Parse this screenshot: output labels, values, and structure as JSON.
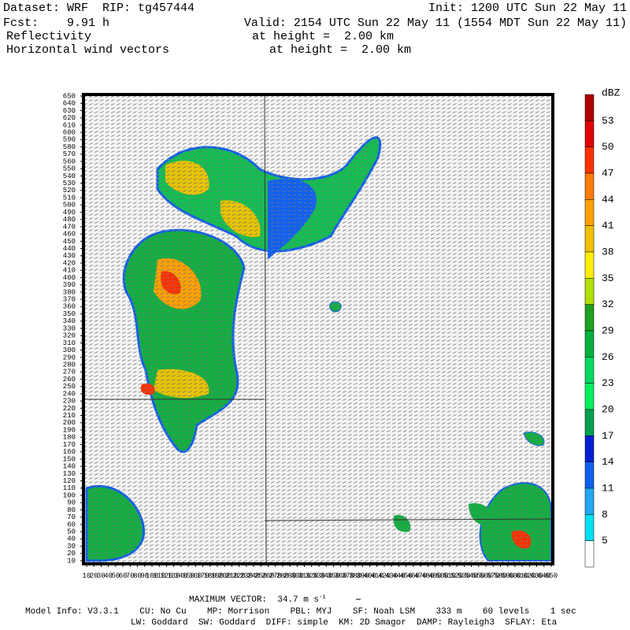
{
  "header": {
    "dataset": "Dataset: WRF  RIP: tg457444",
    "init": "Init: 1200 UTC Sun 22 May 11",
    "fcst": "Fcst:    9.91 h",
    "valid": "Valid: 2154 UTC Sun 22 May 11 (1554 MDT Sun 22 May 11)",
    "field1": "Reflectivity",
    "height1": "at height =  2.00 km",
    "field2": "Horizontal wind vectors",
    "height2": "at height =  2.00 km"
  },
  "plot": {
    "xlim": [
      10,
      650
    ],
    "ylim": [
      10,
      650
    ],
    "xticks": [
      10,
      20,
      30,
      40,
      50,
      60,
      70,
      80,
      90,
      100,
      110,
      120,
      130,
      140,
      150,
      160,
      170,
      180,
      190,
      200,
      210,
      220,
      230,
      240,
      250,
      260,
      270,
      280,
      290,
      300,
      310,
      320,
      330,
      340,
      350,
      360,
      370,
      380,
      390,
      400,
      410,
      420,
      430,
      440,
      450,
      460,
      470,
      480,
      490,
      500,
      510,
      520,
      530,
      540,
      550,
      560,
      570,
      580,
      590,
      600,
      610,
      620,
      630,
      640,
      650
    ],
    "yticks": [
      10,
      20,
      30,
      40,
      50,
      60,
      70,
      80,
      90,
      100,
      110,
      120,
      130,
      140,
      150,
      160,
      170,
      180,
      190,
      200,
      210,
      220,
      230,
      240,
      250,
      260,
      270,
      280,
      290,
      300,
      310,
      320,
      330,
      340,
      350,
      360,
      370,
      380,
      390,
      400,
      410,
      420,
      430,
      440,
      450,
      460,
      470,
      480,
      490,
      500,
      510,
      520,
      530,
      540,
      550,
      560,
      570,
      580,
      590,
      600,
      610,
      620,
      630,
      640,
      650
    ]
  },
  "colorbar": {
    "unit": "dBZ",
    "levels": [
      53,
      50,
      47,
      44,
      41,
      38,
      35,
      32,
      29,
      26,
      23,
      20,
      17,
      14,
      11,
      8,
      5
    ],
    "colors": [
      "#b00000",
      "#e00000",
      "#ff3000",
      "#ff7a00",
      "#ffa000",
      "#f0c000",
      "#ffee00",
      "#b0e000",
      "#20a020",
      "#00b040",
      "#00d860",
      "#00f060",
      "#00a050",
      "#0020d0",
      "#1060f0",
      "#20a8f0",
      "#00e0f0",
      "#ffffff"
    ]
  },
  "footer": {
    "max_vector": "MAXIMUM VECTOR:  34.7 m s",
    "max_vector_exp": "-1",
    "model_info": "Model Info: V3.3.1    CU: No Cu    MP: Morrison    PBL: MYJ    SF: Noah LSM    333 m    60 levels    1 sec",
    "physics": "LW: Goddard  SW: Goddard  DIFF: simple  KM: 2D Smagor  DAMP: Rayleigh3  SFLAY: Eta"
  }
}
